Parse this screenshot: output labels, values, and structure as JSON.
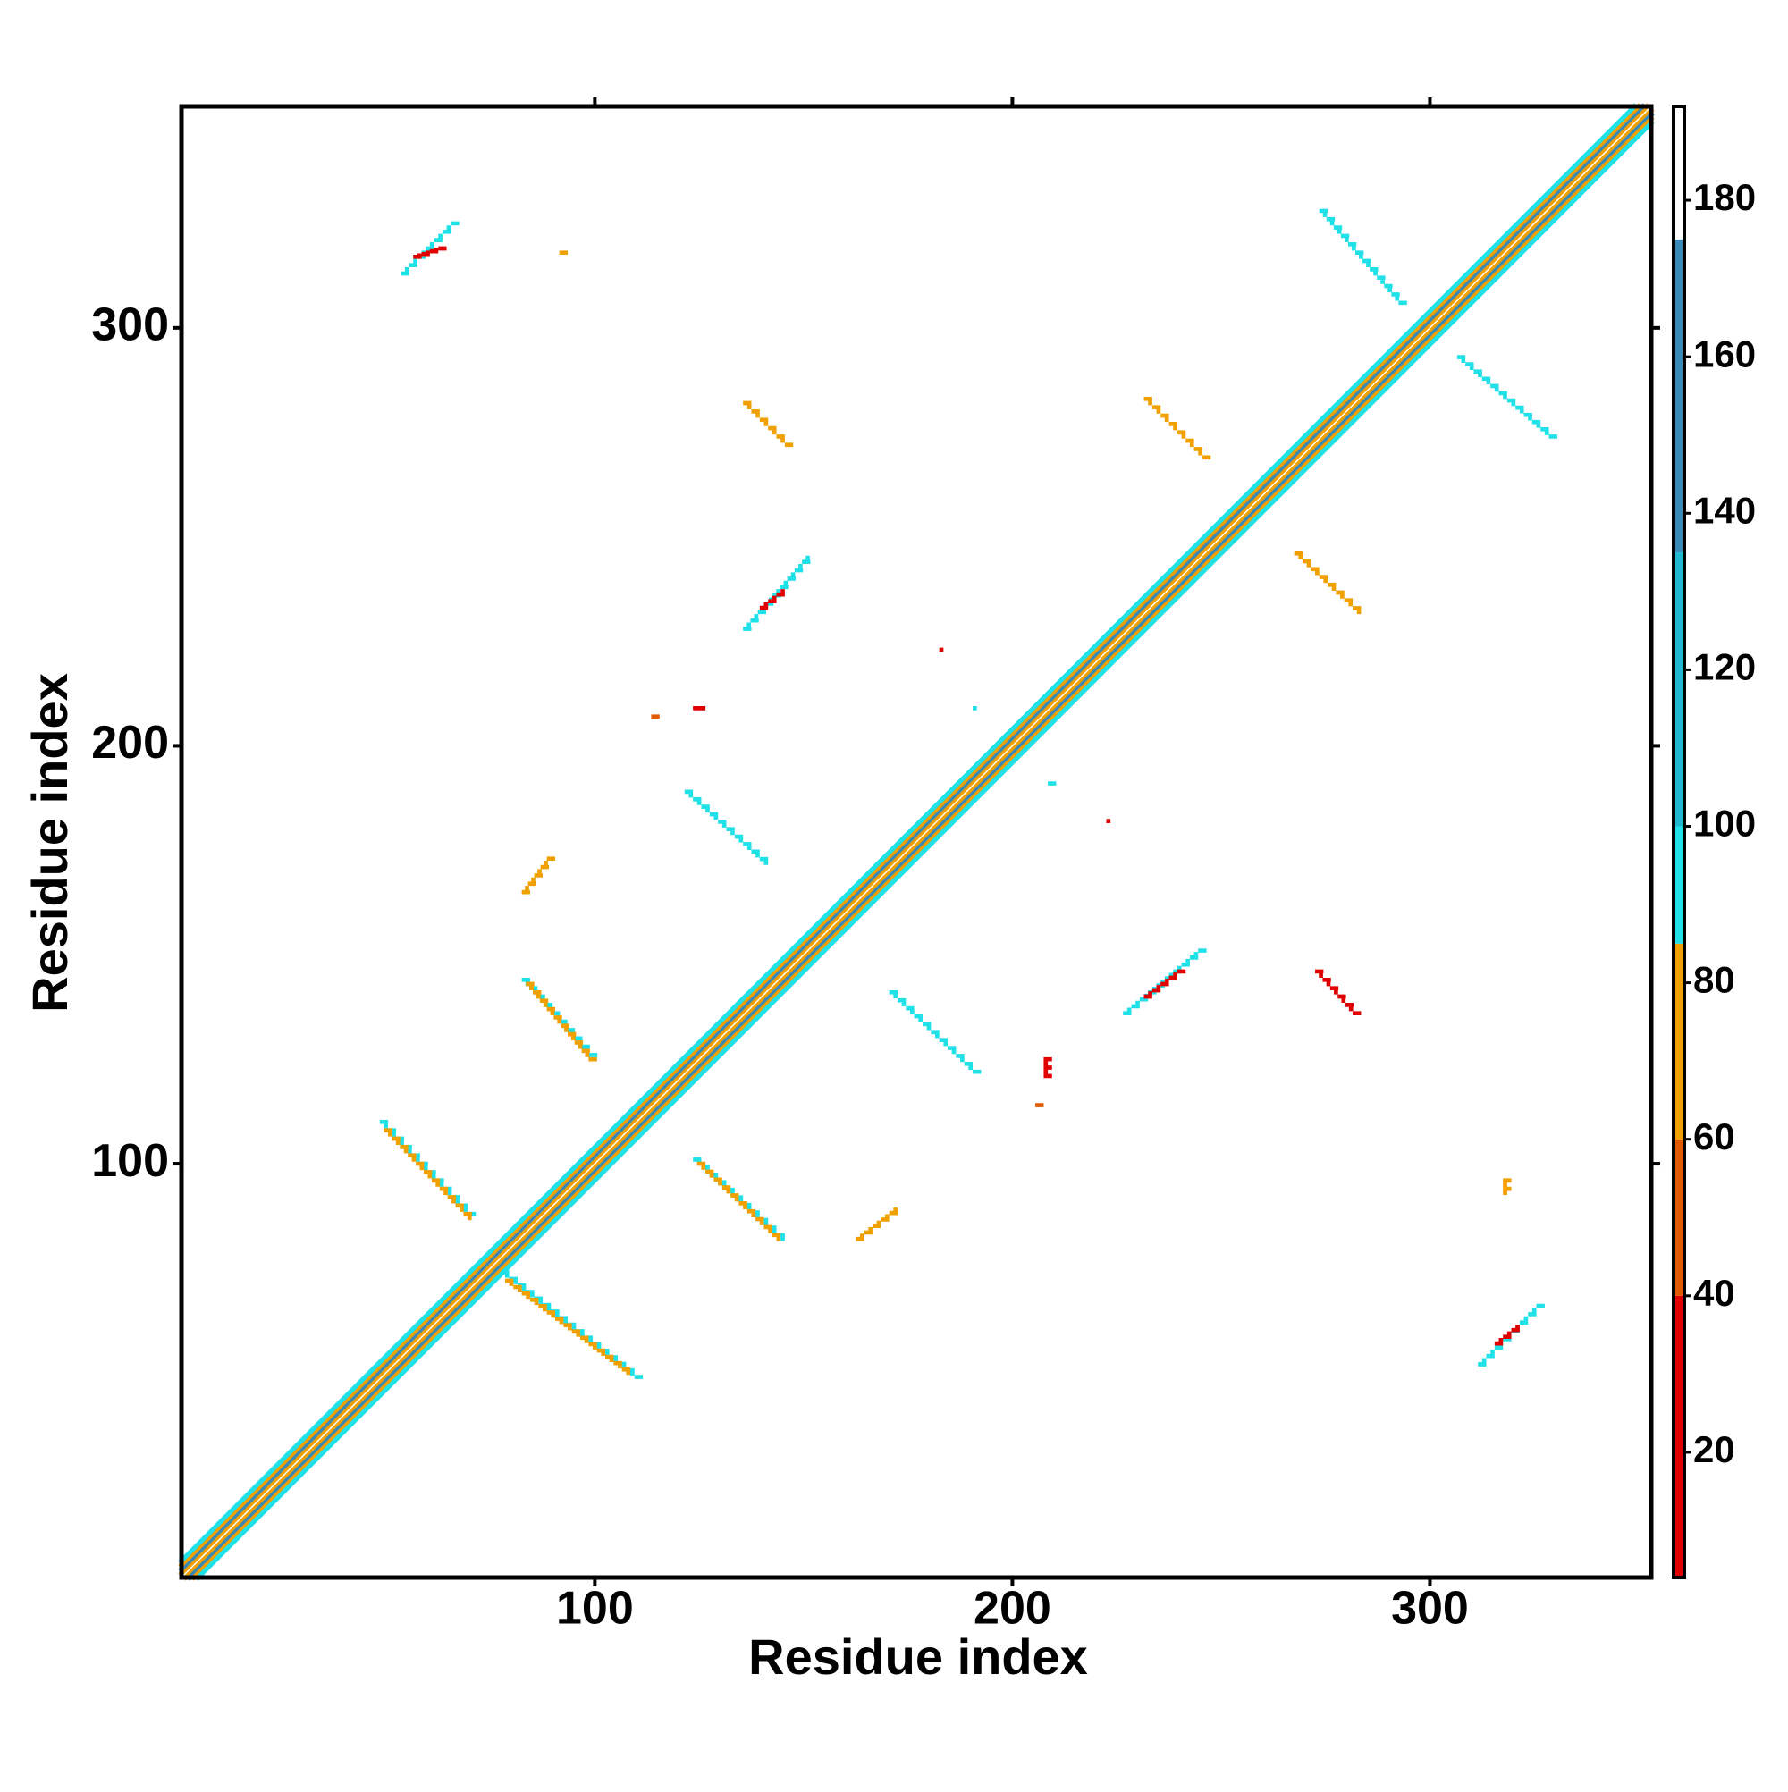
{
  "chart_data": {
    "type": "contact-map",
    "xlabel": "Residue index",
    "ylabel": "Residue index",
    "xlim": [
      1,
      353
    ],
    "ylim": [
      1,
      353
    ],
    "xticks": [
      100,
      200,
      300
    ],
    "yticks": [
      100,
      200,
      300
    ],
    "clim": [
      4,
      192
    ],
    "cticks": [
      20,
      40,
      60,
      80,
      100,
      120,
      140,
      160,
      180
    ],
    "colorscale": [
      {
        "from": 4,
        "to": 40,
        "color": "#e00000"
      },
      {
        "from": 40,
        "to": 60,
        "color": "#e05a00"
      },
      {
        "from": 60,
        "to": 85,
        "color": "#f0a000"
      },
      {
        "from": 85,
        "to": 100,
        "color": "#20e0e8"
      },
      {
        "from": 100,
        "to": 135,
        "color": "#20b8d0"
      },
      {
        "from": 135,
        "to": 175,
        "color": "#3a8ab8"
      },
      {
        "from": 175,
        "to": 192,
        "color": "#ffffff"
      }
    ],
    "diagonal": {
      "start": 1,
      "end": 353,
      "bands": [
        {
          "offset": 0,
          "value": 185
        },
        {
          "offset": 1,
          "value": 70
        },
        {
          "offset": 2,
          "value": 150
        },
        {
          "offset": 3,
          "value": 75
        },
        {
          "offset": 4,
          "value": 95
        }
      ]
    },
    "contacts": [
      {
        "x": [
          49,
          70
        ],
        "y": [
          110,
          88
        ],
        "value": 95
      },
      {
        "x": [
          50,
          70
        ],
        "y": [
          108,
          87
        ],
        "value": 75
      },
      {
        "x": [
          78,
          110
        ],
        "y": [
          74,
          49
        ],
        "value": 95
      },
      {
        "x": [
          79,
          108
        ],
        "y": [
          72,
          50
        ],
        "value": 75
      },
      {
        "x": [
          83,
          100
        ],
        "y": [
          144,
          125
        ],
        "value": 95
      },
      {
        "x": [
          84,
          99
        ],
        "y": [
          143,
          125
        ],
        "value": 75
      },
      {
        "x": [
          83,
          89
        ],
        "y": [
          165,
          173
        ],
        "value": 75
      },
      {
        "x": [
          122,
          141
        ],
        "y": [
          189,
          172
        ],
        "value": 95
      },
      {
        "x": [
          124,
          145
        ],
        "y": [
          101,
          82
        ],
        "value": 95
      },
      {
        "x": [
          125,
          144
        ],
        "y": [
          100,
          82
        ],
        "value": 75
      },
      {
        "x": [
          163,
          172
        ],
        "y": [
          82,
          89
        ],
        "value": 75
      },
      {
        "x": [
          171,
          191
        ],
        "y": [
          141,
          122
        ],
        "value": 95
      },
      {
        "x": [
          54,
          66
        ],
        "y": [
          313,
          325
        ],
        "value": 95
      },
      {
        "x": [
          57,
          63
        ],
        "y": [
          317,
          319
        ],
        "value": 30
      },
      {
        "x": [
          92,
          93
        ],
        "y": [
          318,
          318
        ],
        "value": 75
      },
      {
        "x": [
          136,
          146
        ],
        "y": [
          282,
          272
        ],
        "value": 75
      },
      {
        "x": [
          136,
          151
        ],
        "y": [
          228,
          245
        ],
        "value": 95
      },
      {
        "x": [
          140,
          145
        ],
        "y": [
          233,
          237
        ],
        "value": 30
      },
      {
        "x": [
          114,
          115
        ],
        "y": [
          207,
          207
        ],
        "value": 50
      },
      {
        "x": [
          124,
          126
        ],
        "y": [
          209,
          209
        ],
        "value": 30
      },
      {
        "x": [
          183,
          183
        ],
        "y": [
          223,
          223
        ],
        "value": 30
      },
      {
        "x": [
          191,
          191
        ],
        "y": [
          209,
          209
        ],
        "value": 95
      },
      {
        "x": [
          209,
          210
        ],
        "y": [
          191,
          191
        ],
        "value": 95
      },
      {
        "x": [
          223,
          223
        ],
        "y": [
          182,
          182
        ],
        "value": 30
      },
      {
        "x": [
          208,
          208
        ],
        "y": [
          125,
          121
        ],
        "value": 30
      },
      {
        "x": [
          206,
          207
        ],
        "y": [
          114,
          114
        ],
        "value": 50
      },
      {
        "x": [
          227,
          245
        ],
        "y": [
          136,
          151
        ],
        "value": 95
      },
      {
        "x": [
          232,
          240
        ],
        "y": [
          140,
          146
        ],
        "value": 30
      },
      {
        "x": [
          273,
          282
        ],
        "y": [
          146,
          136
        ],
        "value": 30
      },
      {
        "x": [
          232,
          246
        ],
        "y": [
          283,
          269
        ],
        "value": 75
      },
      {
        "x": [
          268,
          283
        ],
        "y": [
          246,
          232
        ],
        "value": 75
      },
      {
        "x": [
          274,
          293
        ],
        "y": [
          328,
          306
        ],
        "value": 95
      },
      {
        "x": [
          307,
          329
        ],
        "y": [
          293,
          274
        ],
        "value": 95
      },
      {
        "x": [
          318,
          318
        ],
        "y": [
          96,
          93
        ],
        "value": 75
      },
      {
        "x": [
          312,
          326
        ],
        "y": [
          52,
          66
        ],
        "value": 95
      },
      {
        "x": [
          316,
          321
        ],
        "y": [
          57,
          61
        ],
        "value": 30
      }
    ]
  }
}
